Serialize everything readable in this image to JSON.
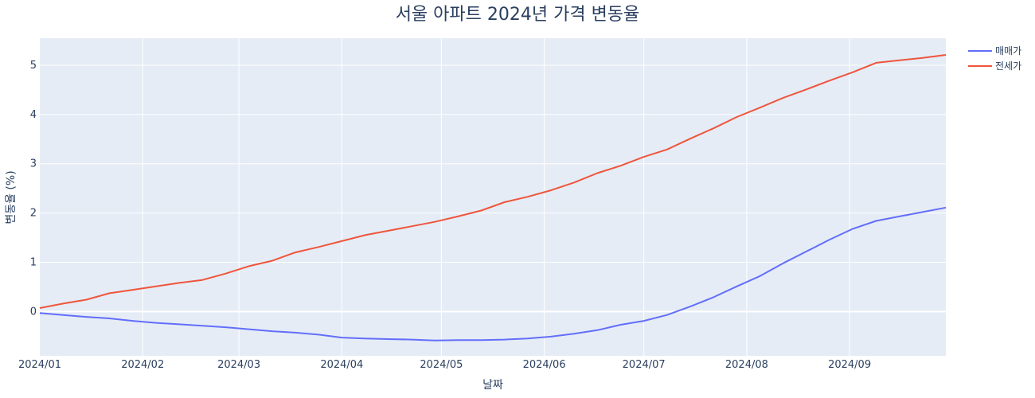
{
  "chart_data": {
    "type": "line",
    "title": "서울 아파트 2024년 가격 변동율",
    "xlabel": "날짜",
    "ylabel": "변동율 (%)",
    "x_range": [
      "2024-01-01",
      "2024-09-30"
    ],
    "ylim": [
      -0.9,
      5.55
    ],
    "x_ticks": [
      {
        "date": "2024-01-01",
        "label": "2024/01"
      },
      {
        "date": "2024-02-01",
        "label": "2024/02"
      },
      {
        "date": "2024-03-01",
        "label": "2024/03"
      },
      {
        "date": "2024-04-01",
        "label": "2024/04"
      },
      {
        "date": "2024-05-01",
        "label": "2024/05"
      },
      {
        "date": "2024-06-01",
        "label": "2024/06"
      },
      {
        "date": "2024-07-01",
        "label": "2024/07"
      },
      {
        "date": "2024-08-01",
        "label": "2024/08"
      },
      {
        "date": "2024-09-01",
        "label": "2024/09"
      }
    ],
    "y_ticks": [
      0,
      1,
      2,
      3,
      4,
      5
    ],
    "x": [
      "2024-01-01",
      "2024-01-08",
      "2024-01-15",
      "2024-01-22",
      "2024-01-29",
      "2024-02-05",
      "2024-02-12",
      "2024-02-19",
      "2024-02-26",
      "2024-03-04",
      "2024-03-11",
      "2024-03-18",
      "2024-03-25",
      "2024-04-01",
      "2024-04-08",
      "2024-04-15",
      "2024-04-22",
      "2024-04-29",
      "2024-05-06",
      "2024-05-13",
      "2024-05-20",
      "2024-05-27",
      "2024-06-03",
      "2024-06-10",
      "2024-06-17",
      "2024-06-24",
      "2024-07-01",
      "2024-07-08",
      "2024-07-15",
      "2024-07-22",
      "2024-07-29",
      "2024-08-05",
      "2024-08-12",
      "2024-08-19",
      "2024-08-26",
      "2024-09-02",
      "2024-09-09",
      "2024-09-16",
      "2024-09-23",
      "2024-09-30"
    ],
    "series": [
      {
        "name": "매매가",
        "color": "#636efa",
        "values": [
          -0.03,
          -0.07,
          -0.11,
          -0.14,
          -0.19,
          -0.23,
          -0.26,
          -0.29,
          -0.32,
          -0.36,
          -0.4,
          -0.43,
          -0.47,
          -0.53,
          -0.55,
          -0.56,
          -0.57,
          -0.59,
          -0.58,
          -0.58,
          -0.57,
          -0.55,
          -0.51,
          -0.45,
          -0.38,
          -0.27,
          -0.19,
          -0.07,
          0.1,
          0.29,
          0.51,
          0.72,
          0.98,
          1.22,
          1.46,
          1.68,
          1.84,
          1.93,
          2.02,
          2.11
        ]
      },
      {
        "name": "전세가",
        "color": "#ef553b",
        "values": [
          0.07,
          0.16,
          0.24,
          0.37,
          0.44,
          0.51,
          0.58,
          0.64,
          0.77,
          0.92,
          1.03,
          1.2,
          1.31,
          1.43,
          1.55,
          1.64,
          1.73,
          1.82,
          1.93,
          2.05,
          2.22,
          2.33,
          2.46,
          2.62,
          2.81,
          2.96,
          3.14,
          3.29,
          3.51,
          3.72,
          3.95,
          4.14,
          4.34,
          4.51,
          4.69,
          4.86,
          5.05,
          5.1,
          5.15,
          5.21
        ]
      }
    ],
    "grid": true,
    "legend": "top-right"
  }
}
